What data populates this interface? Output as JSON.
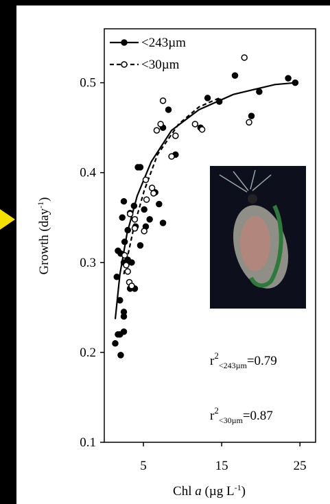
{
  "chart_data": {
    "type": "scatter",
    "xlabel": [
      "Chl ",
      "a",
      " (µg L",
      "-1",
      ")"
    ],
    "ylabel": [
      "Growth (day",
      "-1",
      ")"
    ],
    "xlim": [
      0,
      27
    ],
    "xticks": [
      5,
      15,
      25
    ],
    "ylim": [
      0.1,
      0.56
    ],
    "yticks": [
      0.1,
      0.2,
      0.3,
      0.4,
      0.5
    ],
    "legend": "top-left",
    "series": [
      {
        "name": "<243µm",
        "color": "#000000",
        "marker": "filled",
        "line": "solid",
        "x": [
          1.4,
          1.75,
          2.1,
          2.0,
          2.5,
          2.5,
          2.5,
          1.6,
          2.0,
          1.75,
          2.1,
          2.5,
          2.6,
          2.5,
          2.3,
          3.0,
          3.3,
          3.8,
          3.0,
          3.5,
          3.9,
          3.3,
          4.0,
          4.6,
          4.3,
          4.6,
          5.1,
          5.3,
          5.8,
          6.5,
          7.0,
          7.5,
          7.5,
          8.2,
          9.1,
          13.2,
          14.7,
          16.7,
          18.8,
          19.8,
          23.5,
          24.4,
          12.3
        ],
        "values": [
          0.21,
          0.22,
          0.197,
          0.22,
          0.223,
          0.24,
          0.245,
          0.284,
          0.258,
          0.313,
          0.31,
          0.3,
          0.323,
          0.368,
          0.35,
          0.336,
          0.355,
          0.363,
          0.303,
          0.3,
          0.271,
          0.271,
          0.34,
          0.319,
          0.406,
          0.406,
          0.359,
          0.34,
          0.348,
          0.378,
          0.365,
          0.344,
          0.45,
          0.47,
          0.42,
          0.483,
          0.479,
          0.508,
          0.463,
          0.49,
          0.505,
          0.5,
          0.45
        ],
        "fit": {
          "x": [
            1.4,
            2.0,
            2.9,
            4.2,
            6.0,
            8.6,
            12.1,
            16.5,
            21.8,
            24.4
          ],
          "values": [
            0.237,
            0.287,
            0.332,
            0.374,
            0.412,
            0.447,
            0.47,
            0.487,
            0.498,
            0.5
          ]
        }
      },
      {
        "name": "<30µm",
        "color": "#000000",
        "marker": "open",
        "line": "dashed",
        "x": [
          17.9,
          7.5,
          7.2,
          6.7,
          9.1,
          8.6,
          11.6,
          12.5,
          18.5,
          5.3,
          6.1,
          6.3,
          5.4,
          5.1,
          3.3,
          3.9,
          2.8,
          3.0,
          3.2,
          3.5,
          3.9,
          2.6
        ],
        "values": [
          0.528,
          0.48,
          0.454,
          0.447,
          0.441,
          0.418,
          0.454,
          0.448,
          0.456,
          0.392,
          0.383,
          0.377,
          0.37,
          0.335,
          0.354,
          0.338,
          0.297,
          0.29,
          0.278,
          0.274,
          0.348,
          0.308
        ],
        "fit": {
          "x": [
            2.5,
            3.8,
            5.1,
            6.8,
            9.5,
            12.1,
            14.7
          ],
          "values": [
            0.287,
            0.34,
            0.38,
            0.42,
            0.454,
            0.473,
            0.483
          ]
        }
      }
    ],
    "annotations": [
      [
        "r",
        "2",
        "<243µm",
        "=0.79"
      ],
      [
        "r",
        "2",
        "<30µm",
        "=0.87"
      ]
    ]
  }
}
